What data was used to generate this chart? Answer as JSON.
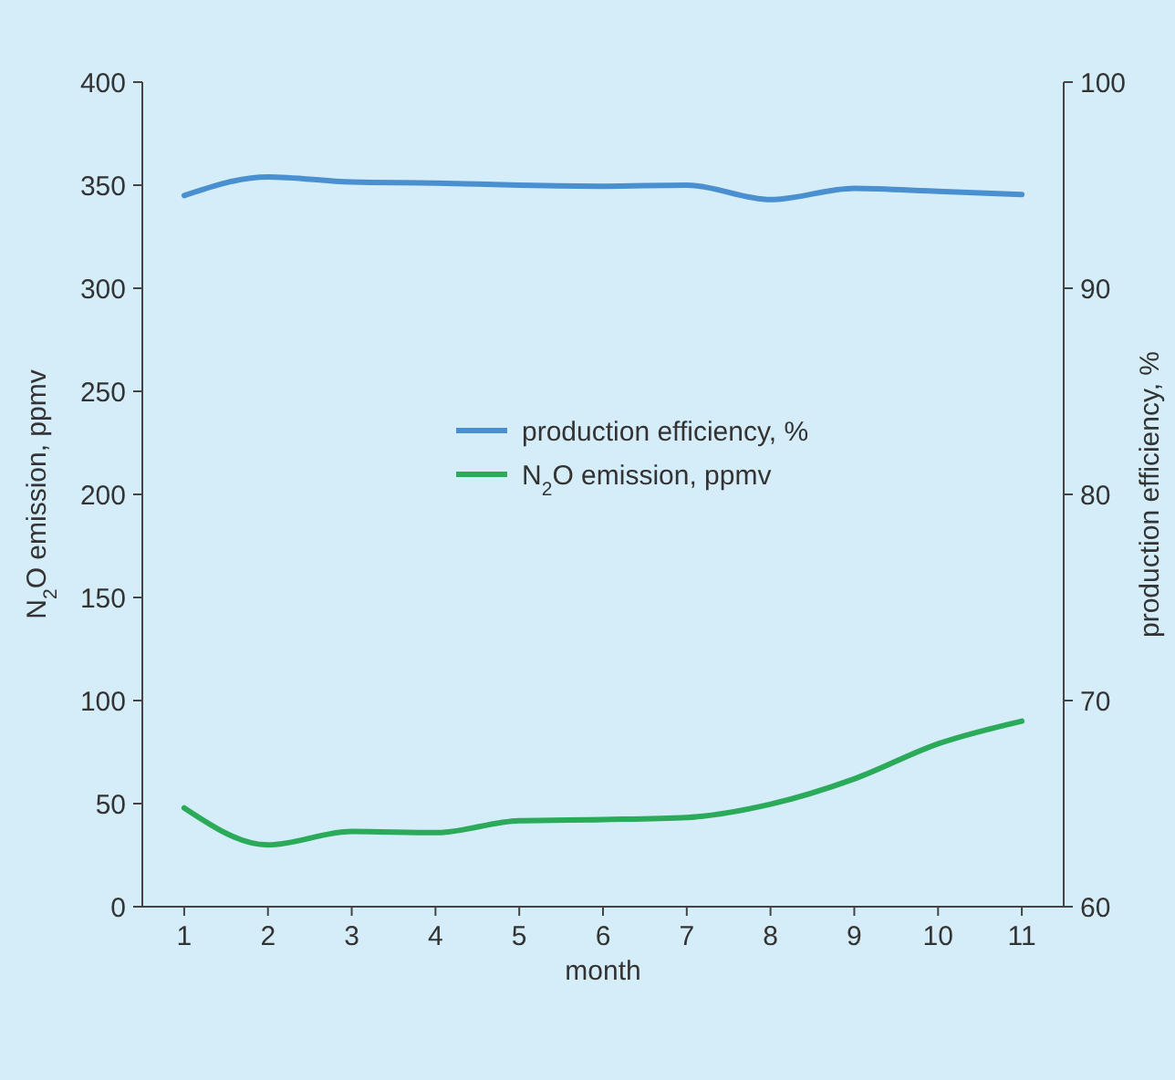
{
  "chart_data": {
    "type": "line",
    "xlabel": "month",
    "ylabel": "N$_{2}$O emission, ppmv",
    "y2label": "production efficiency, %",
    "x": [
      1,
      2,
      3,
      4,
      5,
      6,
      7,
      8,
      9,
      10,
      11
    ],
    "xlim": [
      0.5,
      11.5
    ],
    "xticks": [
      1,
      2,
      3,
      4,
      5,
      6,
      7,
      8,
      9,
      10,
      11
    ],
    "ylim": [
      0,
      400
    ],
    "yticks": [
      0,
      50,
      100,
      150,
      200,
      250,
      300,
      350,
      400
    ],
    "y2lim": [
      60,
      100
    ],
    "y2ticks": [
      60,
      70,
      80,
      90,
      100
    ],
    "series": [
      {
        "name": "production efficiency, %",
        "color": "#4a90d0",
        "axis": "y2",
        "values": [
          94.5,
          95.4,
          95.15,
          95.1,
          95.0,
          94.95,
          95.0,
          94.3,
          94.85,
          94.7,
          94.55
        ]
      },
      {
        "name": "N$_{2}$O emission, ppmv",
        "color": "#2bab5a",
        "values": [
          47.9,
          30,
          36.5,
          35.9,
          41.7,
          42.3,
          43.3,
          49.7,
          62,
          79,
          90
        ]
      }
    ],
    "grid": false,
    "legend": "center",
    "marker": "none",
    "line_style": "solid"
  }
}
